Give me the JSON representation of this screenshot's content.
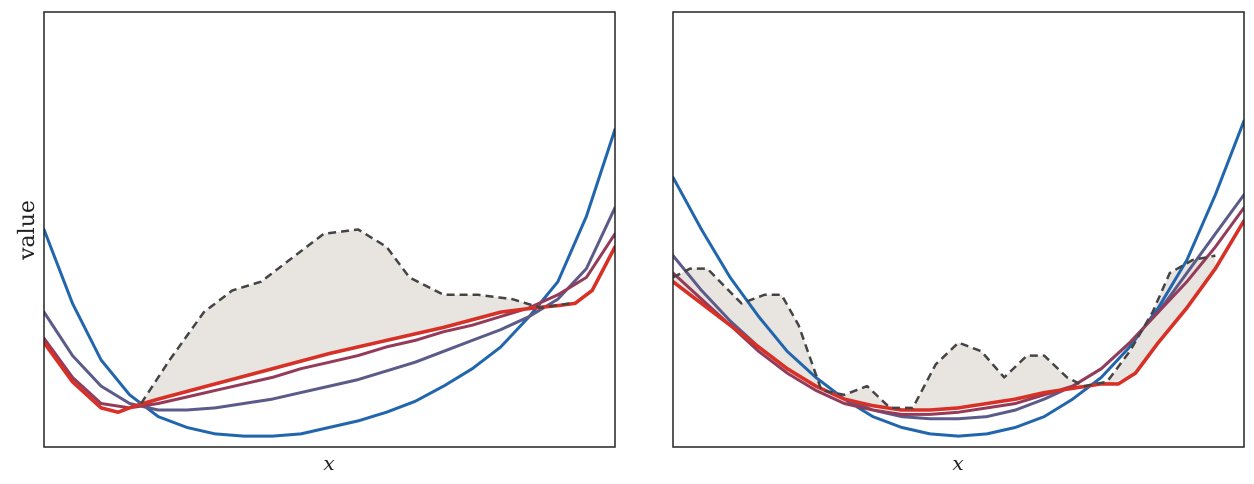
{
  "colors": {
    "envelope_fill": "#e8e4df",
    "target_dashed": "#444444",
    "frame": "#222222"
  },
  "chart_data": [
    {
      "type": "line",
      "title": "",
      "xlabel": "x",
      "ylabel": "value",
      "xlim": [
        0,
        1
      ],
      "ylim": [
        0,
        1
      ],
      "grid": false,
      "legend": "none",
      "x_ticks_shown": false,
      "y_ticks_shown": false,
      "target": {
        "style": "dashed",
        "x": [
          0.17,
          0.22,
          0.28,
          0.33,
          0.38,
          0.44,
          0.49,
          0.55,
          0.6,
          0.64,
          0.7,
          0.76,
          0.82,
          0.87,
          0.92
        ],
        "y": [
          0.1,
          0.2,
          0.31,
          0.36,
          0.38,
          0.44,
          0.49,
          0.5,
          0.46,
          0.39,
          0.35,
          0.35,
          0.34,
          0.32,
          0.33
        ]
      },
      "series": [
        {
          "color": "#2166ac",
          "x": [
            0,
            0.05,
            0.1,
            0.15,
            0.2,
            0.25,
            0.3,
            0.35,
            0.4,
            0.45,
            0.5,
            0.55,
            0.6,
            0.65,
            0.7,
            0.75,
            0.8,
            0.85,
            0.9,
            0.95,
            1.0
          ],
          "y": [
            0.5,
            0.33,
            0.2,
            0.12,
            0.07,
            0.045,
            0.03,
            0.025,
            0.025,
            0.03,
            0.045,
            0.06,
            0.08,
            0.105,
            0.14,
            0.18,
            0.23,
            0.3,
            0.38,
            0.53,
            0.73
          ]
        },
        {
          "color": "#5b5b8a",
          "x": [
            0,
            0.05,
            0.1,
            0.15,
            0.2,
            0.25,
            0.3,
            0.35,
            0.4,
            0.45,
            0.5,
            0.55,
            0.6,
            0.65,
            0.7,
            0.75,
            0.8,
            0.85,
            0.9,
            0.95,
            1.0
          ],
          "y": [
            0.31,
            0.21,
            0.14,
            0.1,
            0.085,
            0.085,
            0.09,
            0.1,
            0.11,
            0.125,
            0.14,
            0.155,
            0.175,
            0.195,
            0.22,
            0.245,
            0.27,
            0.3,
            0.34,
            0.41,
            0.55
          ]
        },
        {
          "color": "#943b5a",
          "x": [
            0,
            0.05,
            0.1,
            0.15,
            0.2,
            0.25,
            0.3,
            0.35,
            0.4,
            0.45,
            0.5,
            0.55,
            0.6,
            0.65,
            0.7,
            0.75,
            0.8,
            0.85,
            0.9,
            0.95,
            1.0
          ],
          "y": [
            0.25,
            0.16,
            0.1,
            0.09,
            0.1,
            0.115,
            0.13,
            0.145,
            0.16,
            0.18,
            0.195,
            0.21,
            0.23,
            0.245,
            0.265,
            0.28,
            0.3,
            0.32,
            0.35,
            0.39,
            0.49
          ]
        },
        {
          "color": "#d73027",
          "x": [
            0,
            0.05,
            0.1,
            0.13,
            0.16,
            0.2,
            0.3,
            0.4,
            0.5,
            0.6,
            0.7,
            0.8,
            0.86,
            0.9,
            0.93,
            0.96,
            1.0
          ],
          "y": [
            0.24,
            0.15,
            0.09,
            0.08,
            0.095,
            0.11,
            0.145,
            0.18,
            0.215,
            0.245,
            0.275,
            0.31,
            0.32,
            0.325,
            0.33,
            0.36,
            0.46
          ]
        }
      ]
    },
    {
      "type": "line",
      "title": "",
      "xlabel": "x",
      "ylabel": "",
      "xlim": [
        0,
        1
      ],
      "ylim": [
        0,
        1
      ],
      "grid": false,
      "legend": "none",
      "x_ticks_shown": false,
      "y_ticks_shown": false,
      "target": {
        "style": "dashed",
        "x": [
          0.0,
          0.03,
          0.06,
          0.09,
          0.12,
          0.16,
          0.19,
          0.22,
          0.26,
          0.3,
          0.34,
          0.38,
          0.42,
          0.46,
          0.5,
          0.54,
          0.58,
          0.62,
          0.65,
          0.69,
          0.72,
          0.76,
          0.8,
          0.84,
          0.87,
          0.91,
          0.95
        ],
        "y": [
          0.39,
          0.41,
          0.41,
          0.37,
          0.33,
          0.35,
          0.35,
          0.28,
          0.13,
          0.12,
          0.14,
          0.09,
          0.09,
          0.19,
          0.24,
          0.22,
          0.16,
          0.21,
          0.21,
          0.16,
          0.14,
          0.15,
          0.22,
          0.31,
          0.4,
          0.43,
          0.44
        ]
      },
      "series": [
        {
          "color": "#2166ac",
          "x": [
            0,
            0.05,
            0.1,
            0.15,
            0.2,
            0.25,
            0.3,
            0.35,
            0.4,
            0.45,
            0.5,
            0.55,
            0.6,
            0.65,
            0.7,
            0.75,
            0.8,
            0.85,
            0.9,
            0.95,
            1.0
          ],
          "y": [
            0.62,
            0.5,
            0.39,
            0.3,
            0.22,
            0.16,
            0.11,
            0.07,
            0.045,
            0.03,
            0.025,
            0.03,
            0.045,
            0.07,
            0.11,
            0.16,
            0.23,
            0.32,
            0.43,
            0.58,
            0.75
          ]
        },
        {
          "color": "#5b5b8a",
          "x": [
            0,
            0.05,
            0.1,
            0.15,
            0.2,
            0.25,
            0.3,
            0.35,
            0.4,
            0.45,
            0.5,
            0.55,
            0.6,
            0.65,
            0.7,
            0.75,
            0.8,
            0.85,
            0.9,
            0.95,
            1.0
          ],
          "y": [
            0.44,
            0.36,
            0.29,
            0.23,
            0.18,
            0.14,
            0.11,
            0.085,
            0.07,
            0.065,
            0.065,
            0.07,
            0.085,
            0.11,
            0.14,
            0.18,
            0.24,
            0.31,
            0.4,
            0.49,
            0.58
          ]
        },
        {
          "color": "#943b5a",
          "x": [
            0,
            0.05,
            0.1,
            0.15,
            0.2,
            0.25,
            0.3,
            0.35,
            0.4,
            0.45,
            0.5,
            0.55,
            0.6,
            0.65,
            0.7,
            0.75,
            0.8,
            0.85,
            0.9,
            0.95,
            1.0
          ],
          "y": [
            0.4,
            0.34,
            0.28,
            0.22,
            0.17,
            0.13,
            0.1,
            0.085,
            0.075,
            0.075,
            0.08,
            0.09,
            0.1,
            0.12,
            0.14,
            0.18,
            0.24,
            0.31,
            0.38,
            0.46,
            0.55
          ]
        },
        {
          "color": "#d73027",
          "x": [
            0,
            0.05,
            0.1,
            0.15,
            0.2,
            0.25,
            0.3,
            0.35,
            0.4,
            0.45,
            0.5,
            0.55,
            0.6,
            0.65,
            0.7,
            0.75,
            0.78,
            0.81,
            0.85,
            0.9,
            0.95,
            1.0
          ],
          "y": [
            0.38,
            0.33,
            0.28,
            0.23,
            0.18,
            0.14,
            0.11,
            0.095,
            0.085,
            0.085,
            0.09,
            0.1,
            0.11,
            0.125,
            0.135,
            0.145,
            0.145,
            0.17,
            0.24,
            0.32,
            0.41,
            0.52
          ]
        }
      ]
    }
  ]
}
